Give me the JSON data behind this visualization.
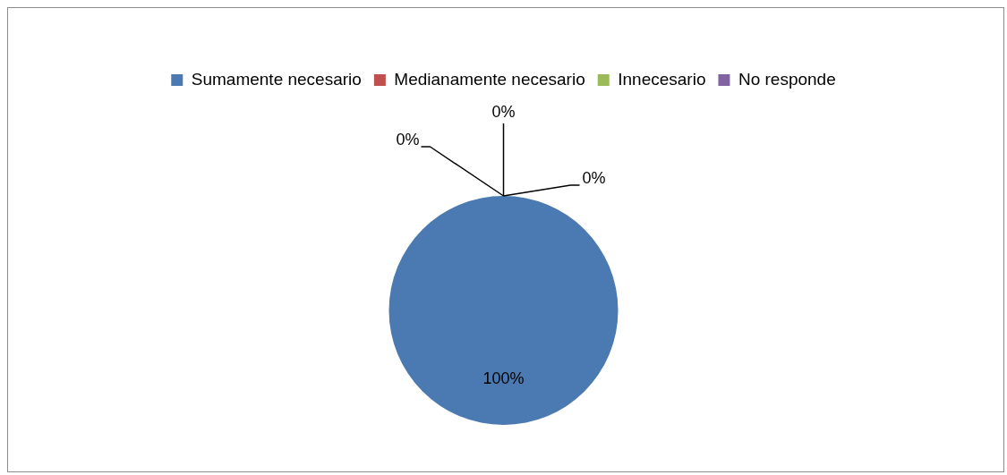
{
  "chart_data": {
    "type": "pie",
    "categories": [
      "Sumamente necesario",
      "Medianamente necesario",
      "Innecesario",
      "No responde"
    ],
    "values": [
      100,
      0,
      0,
      0
    ],
    "colors": [
      "#4a7ab1",
      "#c0504d",
      "#9bbb59",
      "#8064a2"
    ],
    "value_labels": [
      "100%",
      "0%",
      "0%",
      "0%"
    ],
    "legend": "top"
  }
}
